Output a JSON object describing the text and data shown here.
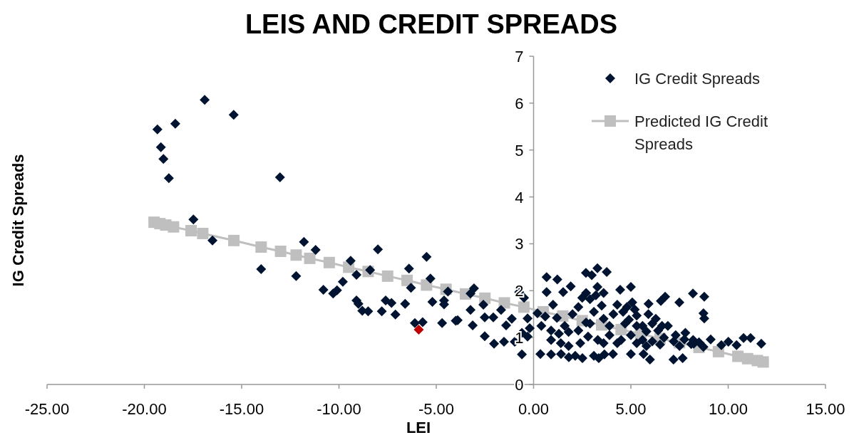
{
  "chart_data": {
    "type": "scatter",
    "title": "LEIS AND CREDIT SPREADS",
    "xlabel": "LEI",
    "ylabel": "IG Credit Spreads",
    "xlim": [
      -25,
      15
    ],
    "xticks": [
      {
        "value": -25,
        "label": "-25.00"
      },
      {
        "value": -20,
        "label": "-20.00"
      },
      {
        "value": -15,
        "label": "-15.00"
      },
      {
        "value": -10,
        "label": "-10.00"
      },
      {
        "value": -5,
        "label": "-5.00"
      },
      {
        "value": 0,
        "label": "0.00"
      },
      {
        "value": 5,
        "label": "5.00"
      },
      {
        "value": 10,
        "label": "10.00"
      },
      {
        "value": 15,
        "label": "15.00"
      }
    ],
    "ylim": [
      0,
      7
    ],
    "yticks": [
      0,
      1,
      2,
      3,
      4,
      5,
      6,
      7
    ],
    "grid": false,
    "legend": "top right",
    "series": [
      {
        "name": "IG Credit Spreads",
        "marker": "diamond",
        "color": "#001432",
        "x": [
          -19.33,
          -19.15,
          -19.02,
          -18.74,
          -18.41,
          -16.9,
          -15.41,
          -13.03,
          -17.48,
          -16.5,
          -14.0,
          -11.8,
          -11.2,
          -12.2,
          -9.4,
          -8.0,
          -5.5,
          -9.1,
          -8.4,
          -6.4,
          -5.3,
          -10.8,
          -10.3,
          -10.1,
          -9.8,
          -6.3,
          -4.4,
          -9.1,
          -9.0,
          -8.8,
          -8.5,
          -7.8,
          -7.6,
          -7.3,
          -6.6,
          -7.1,
          -5.2,
          -4.6,
          -4.6,
          -6.1,
          -5.7,
          -4.7,
          -4.0,
          0.67,
          1.22,
          2.69,
          2.99,
          3.28,
          3.76,
          1.91,
          3.28,
          4.45,
          5.0,
          0.67,
          1.52,
          -0.74,
          -3.06,
          -3.24,
          -0.49,
          8.19,
          8.77,
          6.76,
          6.54,
          7.49,
          5.07,
          5.91,
          8.73,
          8.77,
          6.28,
          -3.24,
          -2.58,
          -1.67,
          -2.51,
          -2.07,
          -1.12,
          -1.41,
          -3.13,
          -2.51,
          -3.9,
          -2.03,
          -1.52,
          -0.97,
          -0.6,
          -0.31,
          -0.31,
          0.35,
          0.9,
          1.41,
          1.81,
          2.14,
          2.51,
          3.1,
          3.35,
          3.64,
          4.08,
          5.0,
          5.65,
          5.98,
          7.19,
          7.66,
          9.1,
          9.65,
          10.01,
          10.43,
          10.79,
          11.15,
          11.7,
          8.23,
          8.73,
          7.75,
          0.2,
          0.6,
          1.0,
          1.2,
          1.6,
          2.0,
          2.3,
          2.5,
          2.9,
          3.1,
          3.5,
          3.6,
          3.9,
          4.1,
          4.6,
          4.9,
          5.3,
          5.6,
          6.1,
          6.4,
          6.9,
          7.3,
          7.8,
          8.2,
          2.7,
          2.3,
          1.8,
          1.3,
          0.9,
          0.4,
          0.9,
          2.8,
          3.3,
          3.9,
          4.5,
          5.0,
          5.6,
          6.1,
          6.7,
          6.5,
          7.2,
          7.5,
          8.1,
          8.5,
          5.8,
          5.3,
          4.3,
          3.6,
          2.4,
          1.8,
          1.4,
          -0.2,
          -0.6,
          2.9,
          4.7,
          5.3,
          5.8,
          4.3,
          4.8,
          2.7,
          3.2,
          3.6,
          5.9,
          6.6,
          5.2
        ],
        "values": [
          5.44,
          5.06,
          4.81,
          4.4,
          5.56,
          6.07,
          5.75,
          4.42,
          3.52,
          3.07,
          2.46,
          3.04,
          2.87,
          2.31,
          2.64,
          2.88,
          2.72,
          2.34,
          2.44,
          2.47,
          2.26,
          2.02,
          1.94,
          2.01,
          2.19,
          2.06,
          1.98,
          1.79,
          1.72,
          1.57,
          1.56,
          1.56,
          1.79,
          1.74,
          1.72,
          1.49,
          1.76,
          1.79,
          1.71,
          1.31,
          1.33,
          1.31,
          1.36,
          2.29,
          2.24,
          2.38,
          2.33,
          2.48,
          2.4,
          2.09,
          2.08,
          2.02,
          2.08,
          1.97,
          1.97,
          1.97,
          2.05,
          1.94,
          1.85,
          1.94,
          1.87,
          1.87,
          1.78,
          1.75,
          1.75,
          1.72,
          1.52,
          1.41,
          1.4,
          1.59,
          1.7,
          1.59,
          1.43,
          1.43,
          1.4,
          1.26,
          1.26,
          1.03,
          1.37,
          0.87,
          0.91,
          0.91,
          0.64,
          1.41,
          1.02,
          0.65,
          0.64,
          0.65,
          0.58,
          0.61,
          0.56,
          0.61,
          0.56,
          0.64,
          0.65,
          0.65,
          0.65,
          0.53,
          0.53,
          0.56,
          0.96,
          0.84,
          0.91,
          0.84,
          0.99,
          0.99,
          0.87,
          0.87,
          0.8,
          0.96,
          1.52,
          1.45,
          1.7,
          1.42,
          1.25,
          1.5,
          1.65,
          1.85,
          1.82,
          1.55,
          1.68,
          1.4,
          1.25,
          1.5,
          1.55,
          1.38,
          1.47,
          1.25,
          1.3,
          1.15,
          1.25,
          1.05,
          1.1,
          0.95,
          1.32,
          1.15,
          1.12,
          1.08,
          1.15,
          1.25,
          0.95,
          1.02,
          0.95,
          1.05,
          0.95,
          1.05,
          0.95,
          0.92,
          1.0,
          0.85,
          0.92,
          0.82,
          0.86,
          0.9,
          0.82,
          0.88,
          0.88,
          0.88,
          0.88,
          0.82,
          0.88,
          1.2,
          1.1,
          1.3,
          1.3,
          1.25,
          1.13,
          1.7,
          1.65,
          1.95,
          1.9,
          1.95,
          1.5,
          1.25,
          1.6
        ]
      },
      {
        "marker": "diamond",
        "color": "#c00000",
        "x": [
          -5.9
        ],
        "values": [
          1.17
        ]
      },
      {
        "name": "Predicted IG Credit Spreads",
        "type": "line",
        "marker": "square",
        "color": "#bfbfbf",
        "x": [
          -19.5,
          -19.2,
          -18.9,
          -18.5,
          -17.6,
          -17.0,
          -15.4,
          -14.0,
          -13.0,
          -12.2,
          -11.5,
          -10.5,
          -9.5,
          -8.5,
          -7.5,
          -6.5,
          -5.5,
          -4.5,
          -3.5,
          -2.5,
          -1.5,
          -0.5,
          0.5,
          1.5,
          2.5,
          3.5,
          4.5,
          5.5,
          6.5,
          7.5,
          8.5,
          9.5,
          10.5,
          11.0,
          11.5,
          11.8
        ],
        "values": [
          3.46,
          3.43,
          3.4,
          3.36,
          3.28,
          3.22,
          3.07,
          2.93,
          2.84,
          2.76,
          2.69,
          2.6,
          2.5,
          2.41,
          2.31,
          2.22,
          2.12,
          2.03,
          1.93,
          1.84,
          1.74,
          1.65,
          1.55,
          1.46,
          1.36,
          1.27,
          1.17,
          1.08,
          0.98,
          0.89,
          0.79,
          0.7,
          0.6,
          0.55,
          0.51,
          0.48
        ]
      }
    ]
  }
}
